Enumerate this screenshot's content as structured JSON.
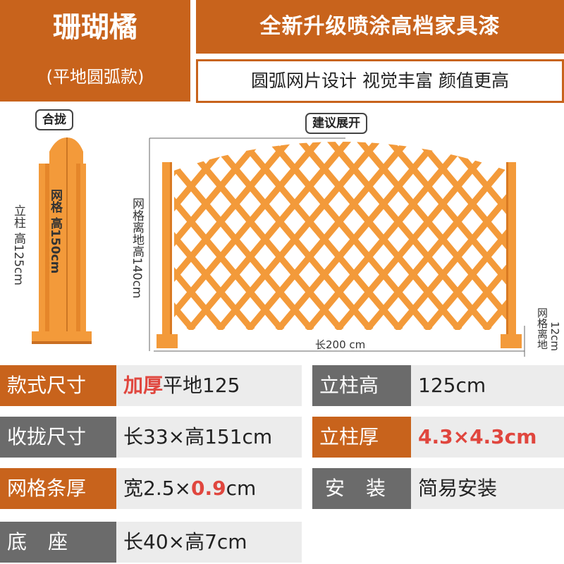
{
  "header": {
    "product_name": "珊瑚橘",
    "product_subtitle": "(平地圆弧款)",
    "headline": "全新升级喷涂高档家具漆",
    "tagline": "圆弧网片设计 视觉丰富 颜值更高"
  },
  "diagram": {
    "folded_label": "合拢",
    "expanded_label": "建议展开",
    "post_height_label": "立柱 高125cm",
    "mesh_height_label": "网格 高150cm",
    "mesh_ground_label": "网格离地高140cm",
    "length_label": "长200 cm",
    "gap_label": "网格离地",
    "gap_value": "12cm"
  },
  "specs": {
    "style_label": "款式尺寸",
    "style_highlight": "加厚",
    "style_value": "平地125",
    "folded_label": "收拢尺寸",
    "folded_value": "长33×高151cm",
    "strip_label": "网格条厚",
    "strip_value_prefix": "宽2.5×",
    "strip_value_highlight": "0.9",
    "strip_value_suffix": "cm",
    "base_label": "底座",
    "base_value": "长40×高7cm",
    "post_height_label": "立柱高",
    "post_height_value": "125cm",
    "post_thick_label": "立柱厚",
    "post_thick_value": "4.3×4.3cm",
    "install_label": "安装",
    "install_value": "简易安装"
  },
  "colors": {
    "brand_orange": "#c8631c",
    "fence_orange": "#f39a3a",
    "label_gray": "#6b6b6b",
    "value_bg": "#ececec",
    "highlight_red": "#e0463e"
  }
}
